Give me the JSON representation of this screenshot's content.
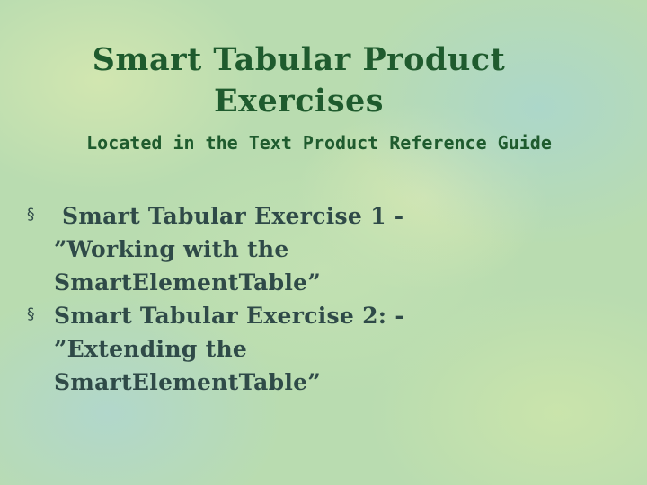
{
  "slide": {
    "title_lines": [
      "Smart Tabular Product",
      "Exercises"
    ],
    "subtitle": "Located in the Text Product Reference Guide",
    "bullet_marker": "§",
    "bullets": [
      {
        "lines": [
          " Smart Tabular Exercise 1 -",
          "”Working with the",
          "SmartElementTable”"
        ]
      },
      {
        "lines": [
          "Smart Tabular Exercise 2: -",
          "”Extending the",
          "SmartElementTable”"
        ]
      }
    ]
  },
  "colors": {
    "title": "#1f5b2e",
    "body_text": "#2f4a48",
    "background": "#b9dcb0"
  }
}
